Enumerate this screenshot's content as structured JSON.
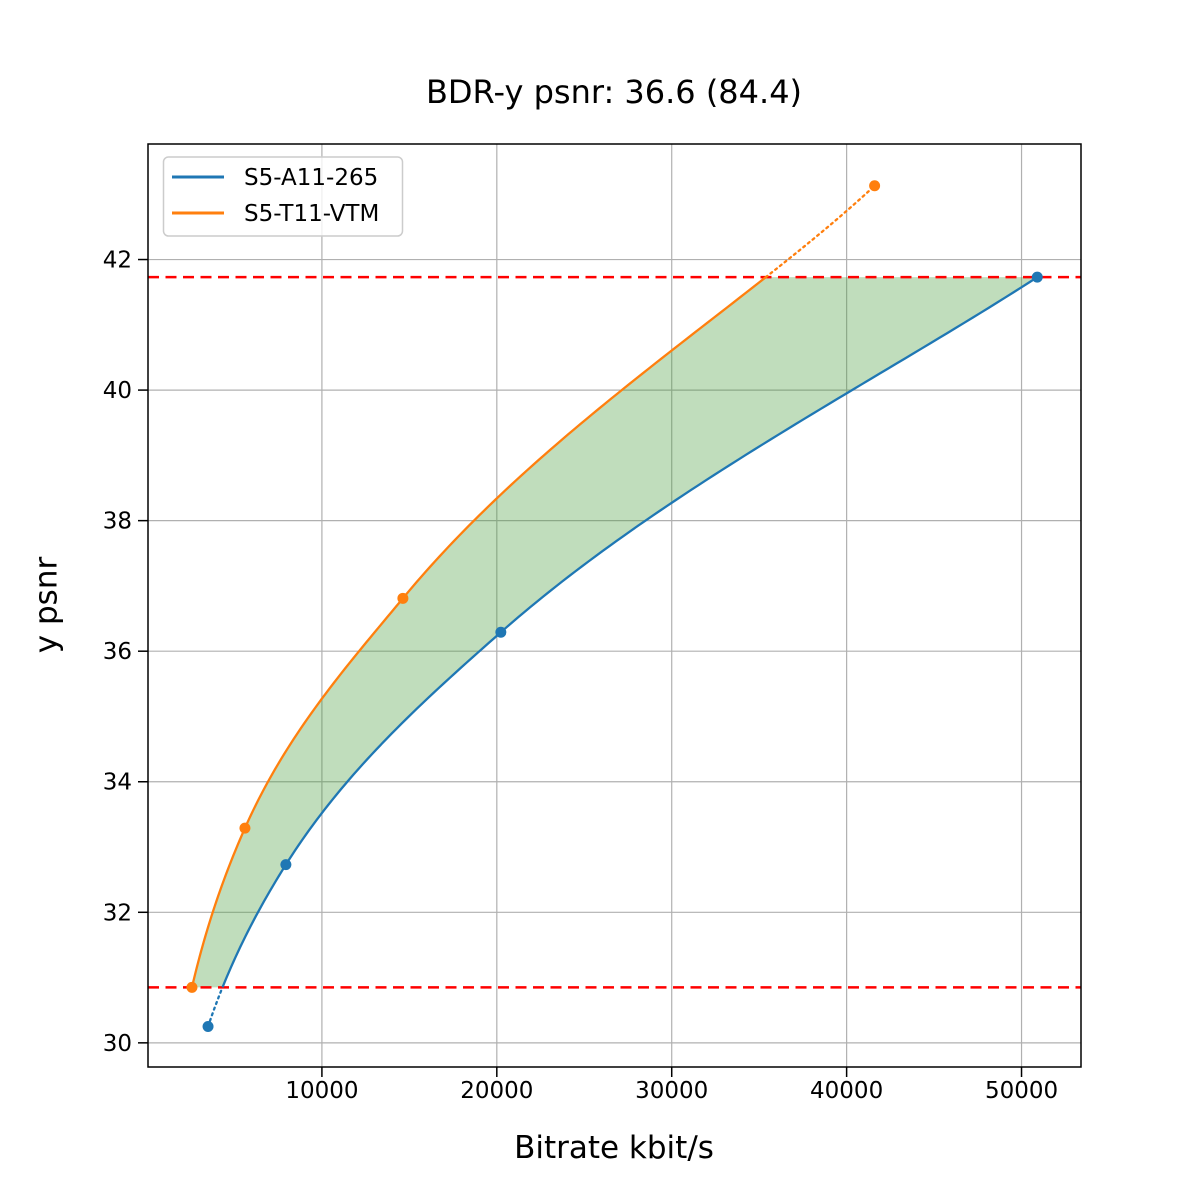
{
  "chart_data": {
    "type": "line",
    "title": "BDR-y psnr: 36.6 (84.4)",
    "xlabel": "Bitrate kbit/s",
    "ylabel": "y psnr",
    "xlim": [
      57,
      53400
    ],
    "ylim": [
      29.63,
      43.77
    ],
    "x_ticks": [
      10000,
      20000,
      30000,
      40000,
      50000
    ],
    "y_ticks": [
      30,
      32,
      34,
      36,
      38,
      40,
      42
    ],
    "grid": true,
    "grid_color": "#b0b0b0",
    "legend_position": "upper-left",
    "series": [
      {
        "name": "S5-A11-265",
        "color": "#1f77b4",
        "points": [
          [
            3490,
            30.25
          ],
          [
            7940,
            32.73
          ],
          [
            20230,
            36.29
          ],
          [
            50900,
            41.73
          ]
        ]
      },
      {
        "name": "S5-T11-VTM",
        "color": "#ff7f0e",
        "points": [
          [
            2570,
            30.85
          ],
          [
            5600,
            33.29
          ],
          [
            14630,
            36.81
          ],
          [
            41600,
            43.13
          ]
        ]
      }
    ],
    "overlap_lines": {
      "color": "#ff0000",
      "style": "dashed",
      "values": [
        30.85,
        41.73
      ]
    },
    "fill_between": {
      "color": "#4a9e3f",
      "opacity": 0.35,
      "range": [
        30.85,
        41.73
      ]
    }
  }
}
